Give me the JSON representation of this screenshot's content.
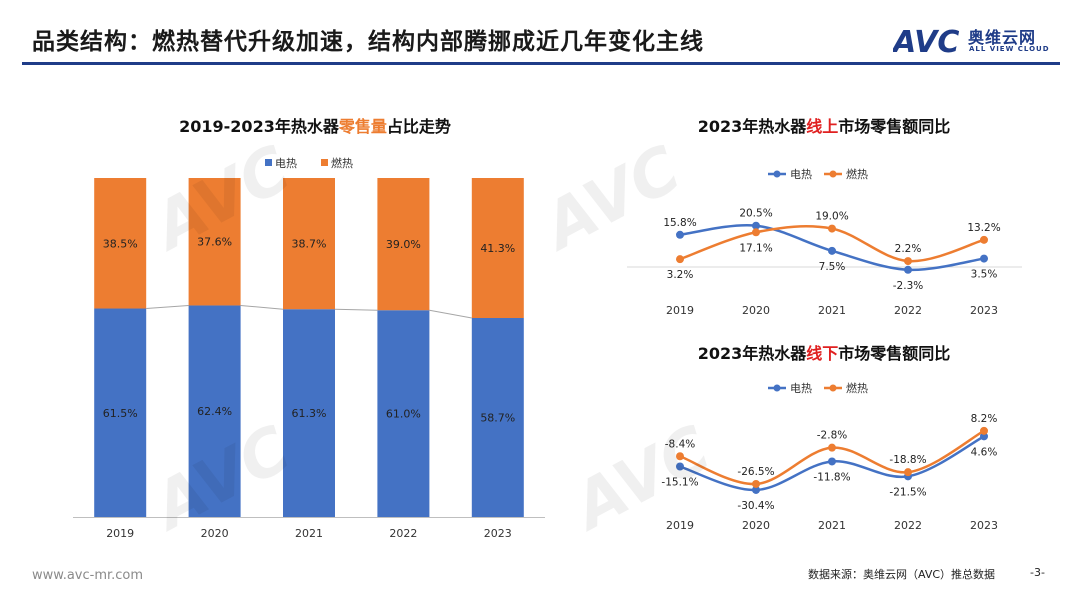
{
  "header": {
    "title": "品类结构：燃热替代升级加速，结构内部腾挪成近几年变化主线",
    "logo_text": "奥维云网",
    "logo_sub": "ALL VIEW CLOUD",
    "logo_mark": "AVC"
  },
  "footer": {
    "website": "www.avc-mr.com",
    "source": "数据来源：奥维云网（AVC）推总数据",
    "page": "-3-"
  },
  "colors": {
    "electric": "#4472c4",
    "gas": "#ed7d31",
    "highlight_orange": "#ed7d31",
    "highlight_red": "#e02020"
  },
  "chart_data": [
    {
      "type": "bar",
      "stacked": true,
      "title_parts": [
        "2019-2023年热水器",
        "零售量",
        "占比走势"
      ],
      "categories": [
        "2019",
        "2020",
        "2021",
        "2022",
        "2023"
      ],
      "series": [
        {
          "name": "电热",
          "values": [
            61.5,
            62.4,
            61.3,
            61.0,
            58.7
          ],
          "labels": [
            "61.5%",
            "62.4%",
            "61.3%",
            "61.0%",
            "58.7%"
          ]
        },
        {
          "name": "燃热",
          "values": [
            38.5,
            37.6,
            38.7,
            39.0,
            41.3
          ],
          "labels": [
            "38.5%",
            "37.6%",
            "38.7%",
            "39.0%",
            "41.3%"
          ]
        }
      ],
      "ylim": [
        0,
        100
      ],
      "legend": "top-center"
    },
    {
      "type": "line",
      "title_parts": [
        "2023年热水器",
        "线上",
        "市场零售额同比"
      ],
      "categories": [
        "2019",
        "2020",
        "2021",
        "2022",
        "2023"
      ],
      "series": [
        {
          "name": "电热",
          "values": [
            15.8,
            20.5,
            7.5,
            -2.3,
            3.5
          ],
          "labels": [
            "15.8%",
            "20.5%",
            "7.5%",
            "-2.3%",
            "3.5%"
          ]
        },
        {
          "name": "燃热",
          "values": [
            3.2,
            17.1,
            19.0,
            2.2,
            13.2
          ],
          "labels": [
            "3.2%",
            "17.1%",
            "19.0%",
            "2.2%",
            "13.2%"
          ]
        }
      ],
      "ylim": [
        -5,
        25
      ],
      "legend": "top-center"
    },
    {
      "type": "line",
      "title_parts": [
        "2023年热水器",
        "线下",
        "市场零售额同比"
      ],
      "categories": [
        "2019",
        "2020",
        "2021",
        "2022",
        "2023"
      ],
      "series": [
        {
          "name": "电热",
          "values": [
            -15.1,
            -30.4,
            -11.8,
            -21.5,
            4.6
          ],
          "labels": [
            "-15.1%",
            "-30.4%",
            "-11.8%",
            "-21.5%",
            "4.6%"
          ]
        },
        {
          "name": "燃热",
          "values": [
            -8.4,
            -26.5,
            -2.8,
            -18.8,
            8.2
          ],
          "labels": [
            "-8.4%",
            "-26.5%",
            "-2.8%",
            "-18.8%",
            "8.2%"
          ]
        }
      ],
      "ylim": [
        -35,
        12
      ],
      "legend": "top-center"
    }
  ]
}
